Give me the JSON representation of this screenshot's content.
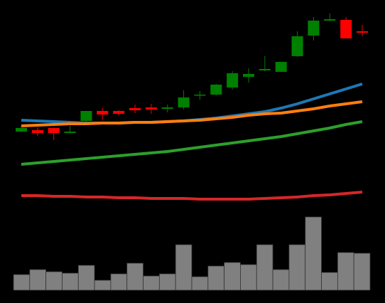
{
  "chart_data": [
    {
      "type": "candlestick",
      "open": [
        115,
        117,
        120,
        113,
        130,
        144,
        144,
        148,
        149,
        147,
        149,
        166,
        167,
        177,
        192,
        201,
        199,
        221,
        250,
        271,
        272,
        256
      ],
      "high": [
        122,
        121,
        121,
        123,
        144,
        148,
        145,
        153,
        154,
        153,
        173,
        172,
        182,
        200,
        204,
        221,
        213,
        256,
        276,
        281,
        276,
        265
      ],
      "low": [
        114,
        109,
        103,
        113,
        128,
        132,
        138,
        141,
        140,
        142,
        146,
        160,
        166,
        174,
        184,
        200,
        199,
        220,
        243,
        270,
        246,
        249
      ],
      "close": [
        120,
        113,
        113,
        115,
        144,
        139,
        140,
        145,
        146,
        149,
        163,
        167,
        181,
        197,
        196,
        203,
        213,
        249,
        271,
        273,
        246,
        254
      ],
      "up_color": "#008000",
      "down_color": "#ff0000",
      "ylim": [
        0,
        300
      ],
      "series": [
        {
          "color": "#1f77b4",
          "values": [
            131,
            130,
            129,
            128,
            127,
            127,
            127,
            128,
            128,
            129,
            130,
            132,
            134,
            137,
            140,
            143,
            148,
            154,
            161,
            168,
            175,
            182
          ]
        },
        {
          "color": "#ff7f0e",
          "values": [
            123,
            124,
            125,
            126,
            126,
            127,
            127,
            128,
            128,
            129,
            130,
            131,
            133,
            135,
            138,
            140,
            141,
            144,
            147,
            151,
            154,
            157
          ]
        },
        {
          "color": "#2ca02c",
          "values": [
            69,
            71,
            73,
            75,
            77,
            79,
            81,
            83,
            85,
            87,
            90,
            93,
            96,
            99,
            102,
            105,
            108,
            112,
            116,
            120,
            125,
            129
          ]
        },
        {
          "color": "#d62728",
          "values": [
            25,
            25,
            24,
            24,
            23,
            23,
            22,
            22,
            21,
            21,
            21,
            20,
            20,
            20,
            20,
            21,
            22,
            23,
            25,
            26,
            28,
            30
          ]
        }
      ]
    },
    {
      "type": "bar",
      "values": [
        22,
        29,
        26,
        24,
        35,
        14,
        23,
        38,
        20,
        23,
        64,
        19,
        34,
        39,
        36,
        64,
        29,
        64,
        103,
        25,
        53,
        52
      ],
      "color": "#808080",
      "ylim": [
        0,
        110
      ]
    }
  ]
}
